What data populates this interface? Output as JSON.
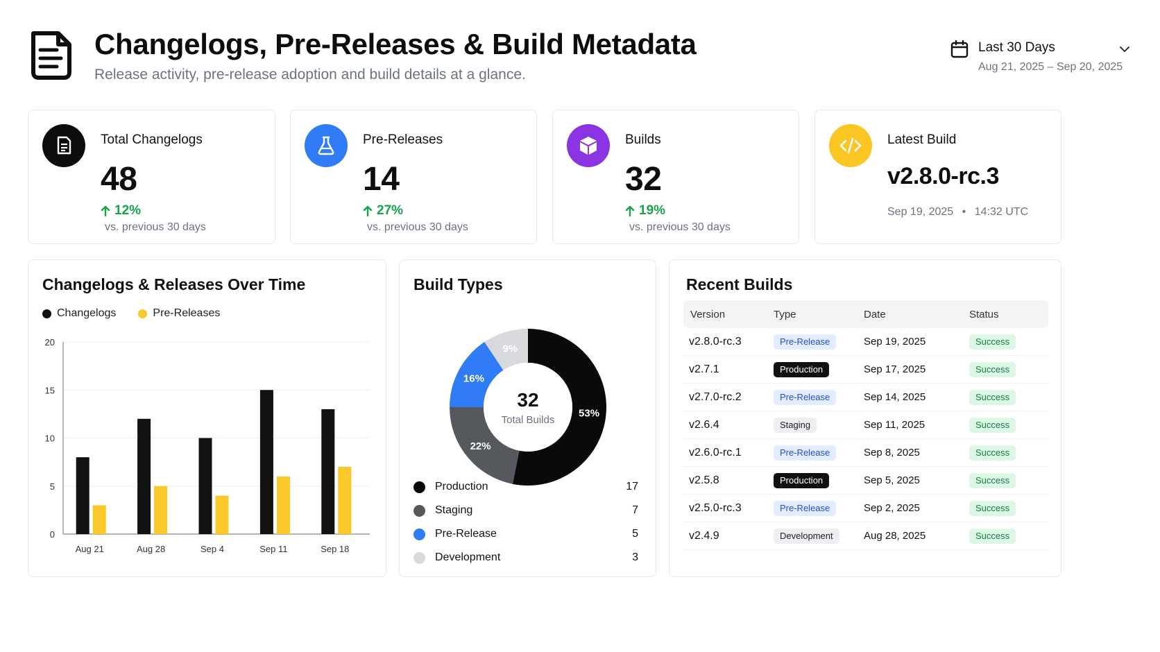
{
  "header": {
    "title": "Changelogs, Pre-Releases & Build Metadata",
    "subtitle": "Release activity, pre-release adoption and build details at a glance.",
    "date_range": {
      "label": "Last 30 Days",
      "range": "Aug 21, 2025 – Sep 20, 2025"
    }
  },
  "kpis": [
    {
      "label": "Total Changelogs",
      "value": "48",
      "delta": "12%",
      "note": "vs. previous 30 days",
      "icon": "document-icon",
      "color": "#0d0d0d"
    },
    {
      "label": "Pre-Releases",
      "value": "14",
      "delta": "27%",
      "note": "vs. previous 30 days",
      "icon": "flask-icon",
      "color": "#2f7cf6"
    },
    {
      "label": "Builds",
      "value": "32",
      "delta": "19%",
      "note": "vs. previous 30 days",
      "icon": "box-icon",
      "color": "#8b34e3"
    },
    {
      "label": "Latest Build",
      "value": "v2.8.0-rc.3",
      "date": "Sep 19, 2025",
      "sep": "•",
      "time": "14:32 UTC",
      "icon": "code-icon",
      "color": "#fbc524"
    }
  ],
  "over_time": {
    "title": "Changelogs & Releases Over Time",
    "chart_data": {
      "type": "bar",
      "categories": [
        "Aug 21",
        "Aug 28",
        "Sep 4",
        "Sep 11",
        "Sep 18"
      ],
      "series": [
        {
          "name": "Changelogs",
          "values": [
            8,
            12,
            10,
            15,
            13
          ],
          "color": "#111111"
        },
        {
          "name": "Pre-Releases",
          "values": [
            3,
            5,
            4,
            6,
            7
          ],
          "color": "#fbc82a"
        }
      ],
      "yticks": [
        0,
        5,
        10,
        15,
        20
      ],
      "ylim": [
        0,
        20
      ],
      "legend": "top-left",
      "grid": true
    }
  },
  "build_types": {
    "title": "Build Types",
    "center_value": "32",
    "center_label": "Total Builds",
    "chart_data": {
      "type": "pie",
      "donut": true,
      "slices": [
        {
          "name": "Production",
          "value": 17,
          "pct": "53%",
          "color": "#0a0a0a"
        },
        {
          "name": "Staging",
          "value": 7,
          "pct": "22%",
          "color": "#55585d"
        },
        {
          "name": "Pre-Release",
          "value": 5,
          "pct": "16%",
          "color": "#2f7cf6"
        },
        {
          "name": "Development",
          "value": 3,
          "pct": "9%",
          "color": "#d7d9dc"
        }
      ]
    }
  },
  "recent_builds": {
    "title": "Recent Builds",
    "columns": [
      "Version",
      "Type",
      "Date",
      "Status"
    ],
    "rows": [
      {
        "version": "v2.8.0-rc.3",
        "type": "Pre-Release",
        "date": "Sep 19, 2025",
        "status": "Success"
      },
      {
        "version": "v2.7.1",
        "type": "Production",
        "date": "Sep 17, 2025",
        "status": "Success"
      },
      {
        "version": "v2.7.0-rc.2",
        "type": "Pre-Release",
        "date": "Sep 14, 2025",
        "status": "Success"
      },
      {
        "version": "v2.6.4",
        "type": "Staging",
        "date": "Sep 11, 2025",
        "status": "Success"
      },
      {
        "version": "v2.6.0-rc.1",
        "type": "Pre-Release",
        "date": "Sep 8, 2025",
        "status": "Success"
      },
      {
        "version": "v2.5.8",
        "type": "Production",
        "date": "Sep 5, 2025",
        "status": "Success"
      },
      {
        "version": "v2.5.0-rc.3",
        "type": "Pre-Release",
        "date": "Sep 2, 2025",
        "status": "Success"
      },
      {
        "version": "v2.4.9",
        "type": "Development",
        "date": "Aug 28, 2025",
        "status": "Success"
      }
    ]
  }
}
